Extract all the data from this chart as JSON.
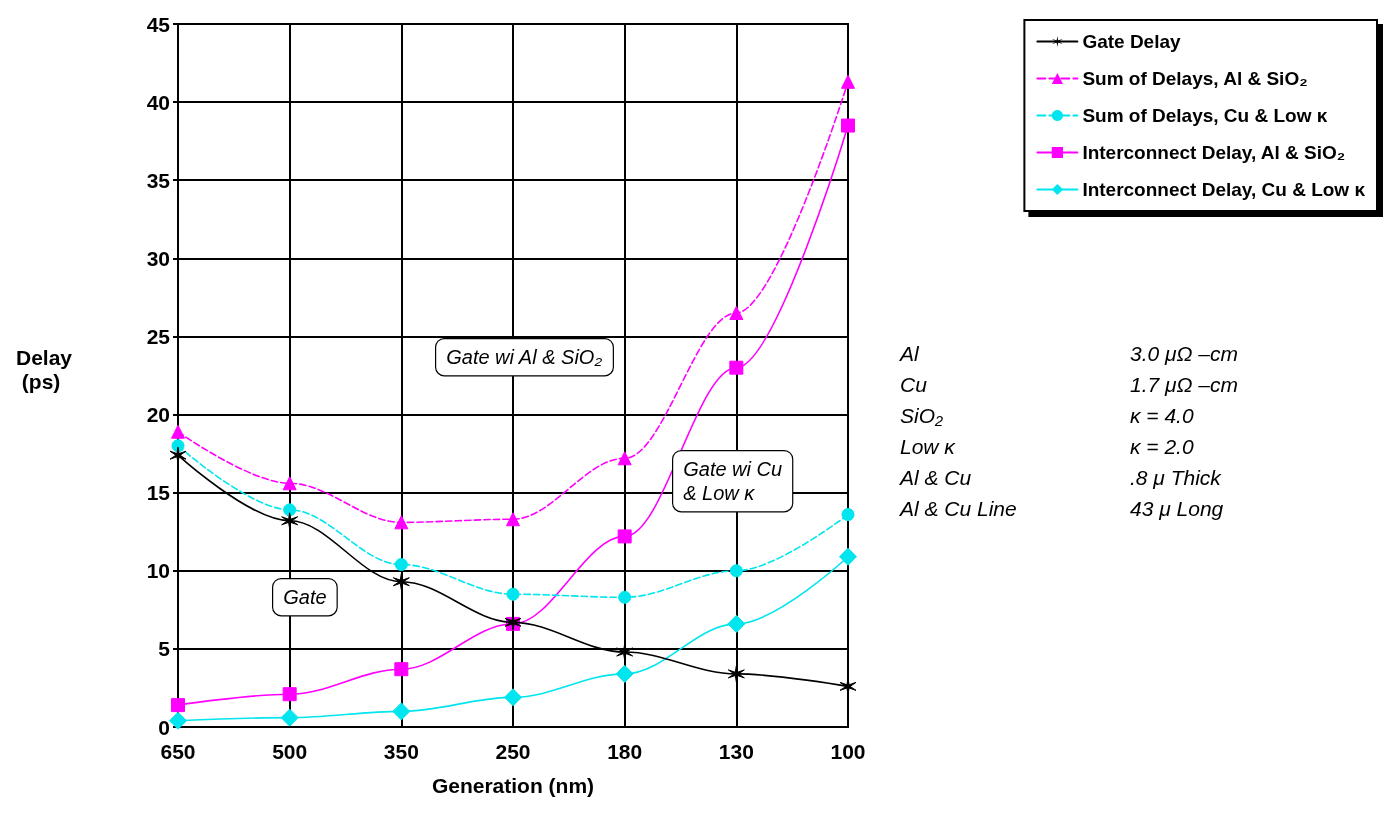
{
  "chart_data": {
    "type": "line",
    "xlabel": "Generation (nm)",
    "ylabel": "Delay (ps)",
    "categories": [
      "650",
      "500",
      "350",
      "250",
      "180",
      "130",
      "100"
    ],
    "ylim": [
      0,
      45
    ],
    "yticks": [
      0,
      5,
      10,
      15,
      20,
      25,
      30,
      35,
      40,
      45
    ],
    "grid": true,
    "legend": "top right",
    "series": [
      {
        "name": "Gate Delay",
        "color": "#000000",
        "marker": "cross",
        "line_style": "solid",
        "values": [
          17.4,
          13.2,
          9.3,
          6.7,
          4.8,
          3.4,
          2.6
        ]
      },
      {
        "name": "Sum of Delays, Al & SiO₂",
        "color": "#ff00ff",
        "marker": "triangle",
        "line_style": "dashed",
        "values": [
          18.9,
          15.6,
          13.1,
          13.3,
          17.2,
          26.5,
          41.3
        ]
      },
      {
        "name": "Sum of Delays, Cu & Low κ",
        "color": "#00e5ee",
        "marker": "circle",
        "line_style": "dashed",
        "values": [
          18.0,
          13.9,
          10.4,
          8.5,
          8.3,
          10.0,
          13.6
        ]
      },
      {
        "name": "Interconnect Delay, Al & SiO₂",
        "color": "#ff00ff",
        "marker": "square",
        "line_style": "solid",
        "values": [
          1.4,
          2.1,
          3.7,
          6.6,
          12.2,
          23.0,
          38.5
        ]
      },
      {
        "name": "Interconnect Delay, Cu & Low κ",
        "color": "#00e5ee",
        "marker": "diamond",
        "line_style": "solid",
        "values": [
          0.4,
          0.6,
          1.0,
          1.9,
          3.4,
          6.6,
          10.9
        ]
      }
    ],
    "annotations": [
      "Gate wi Al & SiO₂",
      "Gate wi Cu\n& Low κ",
      "Gate",
      "Al",
      "3.0 μΩ –cm",
      "Cu",
      "1.7 μΩ –cm",
      "SiO₂",
      "κ = 4.0",
      "Low κ",
      "κ = 2.0",
      "Al & Cu",
      ".8 μ Thick",
      "Al & Cu Line",
      "43 μ Long"
    ]
  }
}
